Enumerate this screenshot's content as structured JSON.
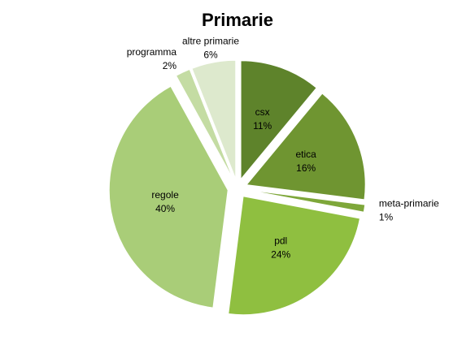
{
  "chart_data": {
    "type": "pie",
    "title": "Primarie",
    "categories": [
      "csx",
      "etica",
      "meta-primarie",
      "pdl",
      "regole",
      "programma",
      "altre primarie"
    ],
    "values": [
      11,
      16,
      1,
      24,
      40,
      2,
      6
    ],
    "value_labels": [
      "11%",
      "16%",
      "1%",
      "24%",
      "40%",
      "2%",
      "6%"
    ],
    "colors": [
      "#5e832b",
      "#6f9531",
      "#7ea73a",
      "#8fbf40",
      "#a9cd78",
      "#c4dca3",
      "#dde9cd"
    ]
  }
}
